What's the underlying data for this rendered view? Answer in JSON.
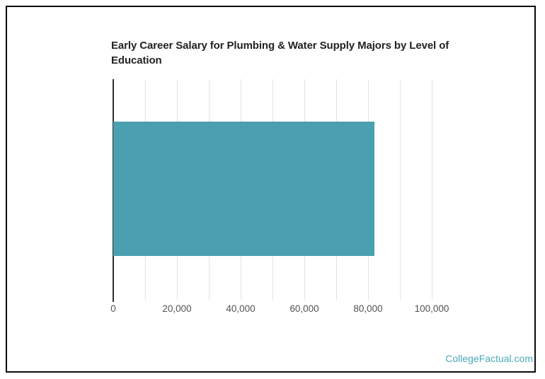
{
  "watermark": {
    "text": "CollegeFactual.com",
    "color": "#4BA8B8"
  },
  "chart_data": {
    "type": "bar",
    "orientation": "horizontal",
    "title": "Early Career Salary for Plumbing & Water Supply Majors by Level of Education",
    "categories": [
      ""
    ],
    "values": [
      82000
    ],
    "xlabel": "",
    "ylabel": "",
    "xlim": [
      0,
      100000
    ],
    "x_ticks": [
      0,
      20000,
      40000,
      60000,
      80000,
      100000
    ],
    "x_tick_labels": [
      "0",
      "20,000",
      "40,000",
      "60,000",
      "80,000",
      "100,000"
    ],
    "gridline_interval": 10000,
    "grid": true,
    "legend": false,
    "colors": {
      "bar": "#4AA0B0",
      "gridline": "#E3E3E3",
      "zero_axis": "#2E2E2E",
      "title_text": "#222222",
      "tick_label": "#525252"
    }
  }
}
